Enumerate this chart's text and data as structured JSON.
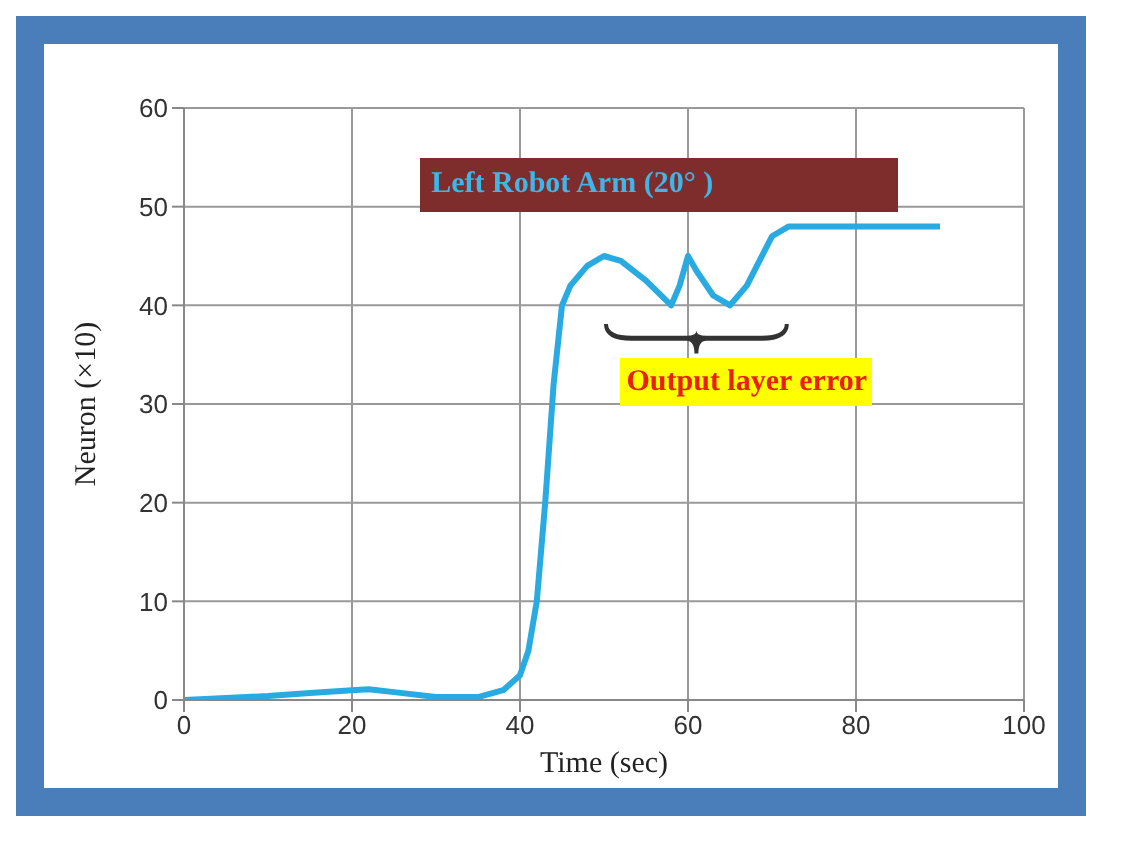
{
  "chart_data": {
    "type": "line",
    "title": "Left Robot Arm (20°  )",
    "xlabel": "Time (sec)",
    "ylabel": "Neuron (×10)",
    "annotations": [
      "Output layer error"
    ],
    "xlim": [
      0,
      100
    ],
    "xticks": [
      0,
      20,
      40,
      60,
      80,
      100
    ],
    "ylim": [
      0,
      60
    ],
    "yticks": [
      0,
      10,
      20,
      30,
      40,
      50,
      60
    ],
    "grid": true,
    "marker": "none",
    "line_style": "solid",
    "series": [
      {
        "color": "#29abe2",
        "x": [
          0,
          5,
          10,
          15,
          20,
          22,
          25,
          30,
          35,
          38,
          40,
          41,
          42,
          43,
          44,
          45,
          46,
          48,
          50,
          52,
          55,
          58,
          59,
          60,
          61,
          63,
          65,
          67,
          70,
          72,
          80,
          90
        ],
        "values": [
          0,
          0.2,
          0.4,
          0.7,
          1,
          1.1,
          0.8,
          0.3,
          0.3,
          1,
          2.5,
          5,
          10,
          20,
          32,
          40,
          42,
          44,
          45,
          44.5,
          42.5,
          40,
          42,
          45,
          43.5,
          41,
          40,
          42,
          47,
          48,
          48,
          48
        ]
      }
    ]
  }
}
